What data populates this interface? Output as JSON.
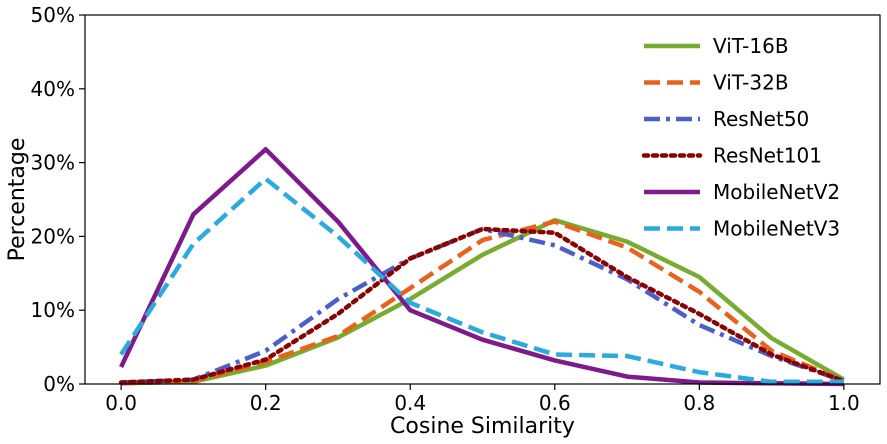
{
  "chart_data": {
    "type": "line",
    "title": "",
    "xlabel": "Cosine Similarity",
    "ylabel": "Percentage",
    "xlim": [
      -0.05,
      1.05
    ],
    "ylim": [
      0,
      50
    ],
    "x_ticks": [
      0.0,
      0.2,
      0.4,
      0.6,
      0.8,
      1.0
    ],
    "x_tick_labels": [
      "0.0",
      "0.2",
      "0.4",
      "0.6",
      "0.8",
      "1.0"
    ],
    "y_ticks": [
      0,
      10,
      20,
      30,
      40,
      50
    ],
    "y_tick_labels": [
      "0%",
      "10%",
      "20%",
      "30%",
      "40%",
      "50%"
    ],
    "legend_position": "top-right",
    "grid": false,
    "x": [
      0.0,
      0.1,
      0.2,
      0.3,
      0.4,
      0.5,
      0.6,
      0.7,
      0.8,
      0.9,
      1.0
    ],
    "series": [
      {
        "name": "ViT-16B",
        "color": "#77ac30",
        "dash": "solid",
        "values": [
          0.1,
          0.3,
          2.5,
          6.3,
          11.5,
          17.5,
          22.2,
          19.3,
          14.5,
          6.2,
          0.6
        ]
      },
      {
        "name": "ViT-32B",
        "color": "#e8621c",
        "dash": "dashed",
        "values": [
          0.1,
          0.4,
          3.0,
          6.5,
          13.0,
          19.5,
          22.0,
          18.5,
          12.5,
          4.5,
          0.4
        ]
      },
      {
        "name": "ResNet50",
        "color": "#4b5fc8",
        "dash": "dashdot",
        "values": [
          0.2,
          0.6,
          4.5,
          11.5,
          17.0,
          21.0,
          18.8,
          14.2,
          8.0,
          3.8,
          0.4
        ]
      },
      {
        "name": "ResNet101",
        "color": "#8b0000",
        "dash": "dotted",
        "values": [
          0.2,
          0.6,
          3.3,
          9.5,
          17.0,
          21.0,
          20.5,
          14.5,
          9.5,
          4.0,
          0.4
        ]
      },
      {
        "name": "MobileNetV2",
        "color": "#7e1a8a",
        "dash": "solid",
        "values": [
          2.3,
          23.0,
          31.8,
          22.0,
          10.0,
          6.0,
          3.2,
          1.0,
          0.2,
          0.1,
          0.0
        ]
      },
      {
        "name": "MobileNetV3",
        "color": "#2aaadf",
        "dash": "dashed",
        "values": [
          4.0,
          19.0,
          27.8,
          20.0,
          11.0,
          7.0,
          4.0,
          3.8,
          1.6,
          0.3,
          0.3
        ]
      }
    ]
  }
}
